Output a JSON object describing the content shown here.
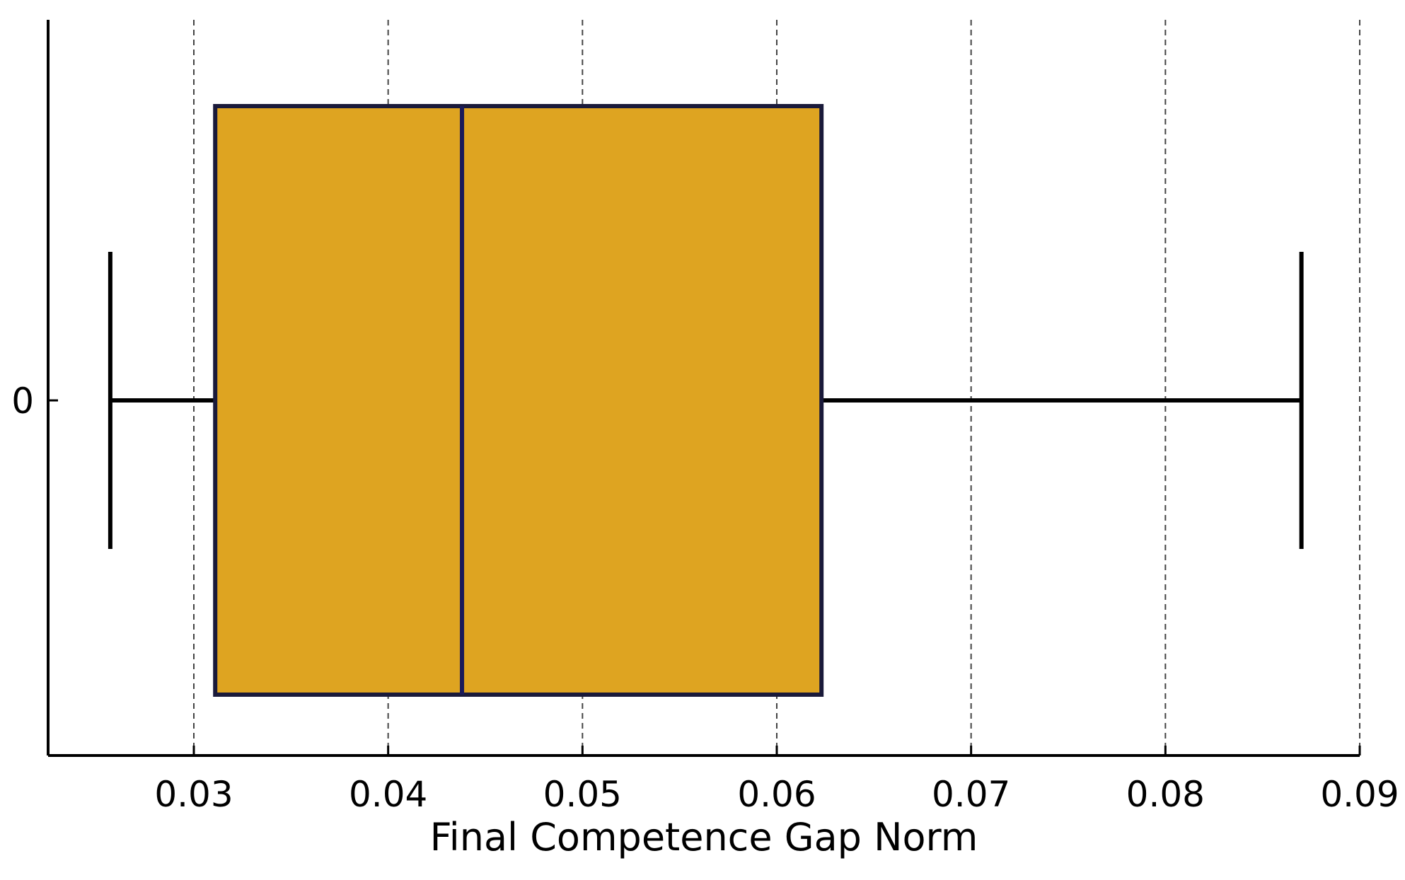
{
  "chart_data": {
    "type": "boxplot",
    "orientation": "horizontal",
    "title": "",
    "xlabel": "Final Competence Gap Norm",
    "ylabel": "",
    "xlim": [
      0.0225,
      0.09
    ],
    "xticks": [
      0.03,
      0.04,
      0.05,
      0.06,
      0.07,
      0.08,
      0.09
    ],
    "xtick_labels": [
      "0.03",
      "0.04",
      "0.05",
      "0.06",
      "0.07",
      "0.08",
      "0.09"
    ],
    "categories": [
      "0"
    ],
    "boxes": [
      {
        "category": "0",
        "whisker_low": 0.0257,
        "q1": 0.0311,
        "median": 0.0438,
        "q3": 0.0623,
        "whisker_high": 0.087
      }
    ],
    "grid": {
      "x": true,
      "y": false,
      "style": "dashed"
    },
    "colors": {
      "box_fill": "#DEA421",
      "box_edge": "#1A1A3A",
      "median_line": "#1A1A5A",
      "whisker": "#000000",
      "axes": "#000000",
      "grid": "#444444",
      "background": "#FFFFFF"
    }
  }
}
